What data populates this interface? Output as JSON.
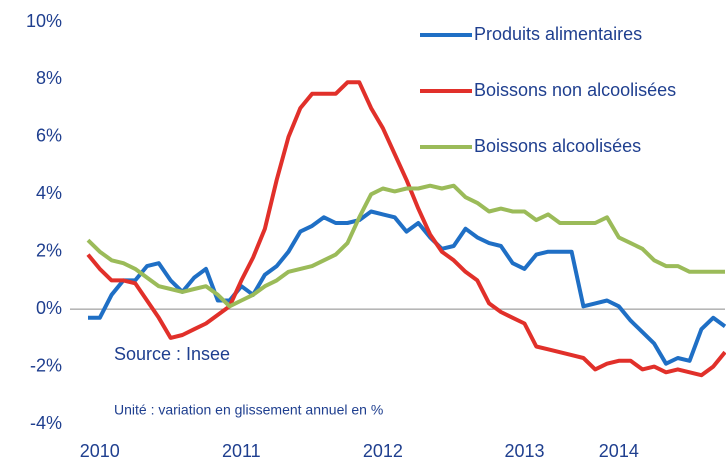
{
  "chart_data": {
    "type": "line",
    "categories": [
      null,
      "2010",
      null,
      null,
      null,
      null,
      null,
      null,
      null,
      null,
      null,
      null,
      null,
      "2011",
      null,
      null,
      null,
      null,
      null,
      null,
      null,
      null,
      null,
      null,
      null,
      "2012",
      null,
      null,
      null,
      null,
      null,
      null,
      null,
      null,
      null,
      null,
      null,
      "2013",
      null,
      null,
      null,
      null,
      null,
      null,
      null,
      "2014",
      null,
      null,
      null,
      null,
      null,
      null,
      null,
      null,
      null
    ],
    "series": [
      {
        "name": "Produits alimentaires",
        "color": "#1f6fc5",
        "values": [
          -0.3,
          -0.3,
          0.5,
          1.0,
          1.0,
          1.5,
          1.6,
          1.0,
          0.6,
          1.1,
          1.4,
          0.3,
          0.3,
          0.8,
          0.5,
          1.2,
          1.5,
          2.0,
          2.7,
          2.9,
          3.2,
          3.0,
          3.0,
          3.1,
          3.4,
          3.3,
          3.2,
          2.7,
          3.0,
          2.5,
          2.1,
          2.2,
          2.8,
          2.5,
          2.3,
          2.2,
          1.6,
          1.4,
          1.9,
          2.0,
          2.0,
          2.0,
          0.1,
          0.2,
          0.3,
          0.1,
          -0.4,
          -0.8,
          -1.2,
          -1.9,
          -1.7,
          -1.8,
          -0.7,
          -0.3,
          -0.6
        ]
      },
      {
        "name": "Boissons non alcoolisées",
        "color": "#e1302a",
        "values": [
          1.9,
          1.4,
          1.0,
          1.0,
          0.9,
          0.3,
          -0.3,
          -1.0,
          -0.9,
          -0.7,
          -0.5,
          -0.2,
          0.1,
          1.0,
          1.8,
          2.8,
          4.5,
          6.0,
          7.0,
          7.5,
          7.5,
          7.5,
          7.9,
          7.9,
          7.0,
          6.3,
          5.4,
          4.5,
          3.5,
          2.6,
          2.0,
          1.7,
          1.3,
          1.0,
          0.2,
          -0.1,
          -0.3,
          -0.5,
          -1.3,
          -1.4,
          -1.5,
          -1.6,
          -1.7,
          -2.1,
          -1.9,
          -1.8,
          -1.8,
          -2.1,
          -2.0,
          -2.2,
          -2.1,
          -2.2,
          -2.3,
          -2.0,
          -1.5
        ]
      },
      {
        "name": "Boissons alcoolisées",
        "color": "#9bbb59",
        "values": [
          2.4,
          2.0,
          1.7,
          1.6,
          1.4,
          1.1,
          0.8,
          0.7,
          0.6,
          0.7,
          0.8,
          0.5,
          0.1,
          0.3,
          0.5,
          0.8,
          1.0,
          1.3,
          1.4,
          1.5,
          1.7,
          1.9,
          2.3,
          3.2,
          4.0,
          4.2,
          4.1,
          4.2,
          4.2,
          4.3,
          4.2,
          4.3,
          3.9,
          3.7,
          3.4,
          3.5,
          3.4,
          3.4,
          3.1,
          3.3,
          3.0,
          3.0,
          3.0,
          3.0,
          3.2,
          2.5,
          2.3,
          2.1,
          1.7,
          1.5,
          1.5,
          1.3,
          1.3,
          1.3,
          1.3
        ]
      }
    ],
    "ylim": [
      -4,
      10
    ],
    "yticks": [
      {
        "value": -4,
        "label": "-4%"
      },
      {
        "value": -2,
        "label": "-2%"
      },
      {
        "value": 0,
        "label": "0%"
      },
      {
        "value": 2,
        "label": "2%"
      },
      {
        "value": 4,
        "label": "4%"
      },
      {
        "value": 6,
        "label": "6%"
      },
      {
        "value": 8,
        "label": "8%"
      },
      {
        "value": 10,
        "label": "10%"
      }
    ],
    "annotations": [
      "Source : Insee",
      "Unité : variation en glissement annuel en %"
    ],
    "legend": "top-right"
  }
}
